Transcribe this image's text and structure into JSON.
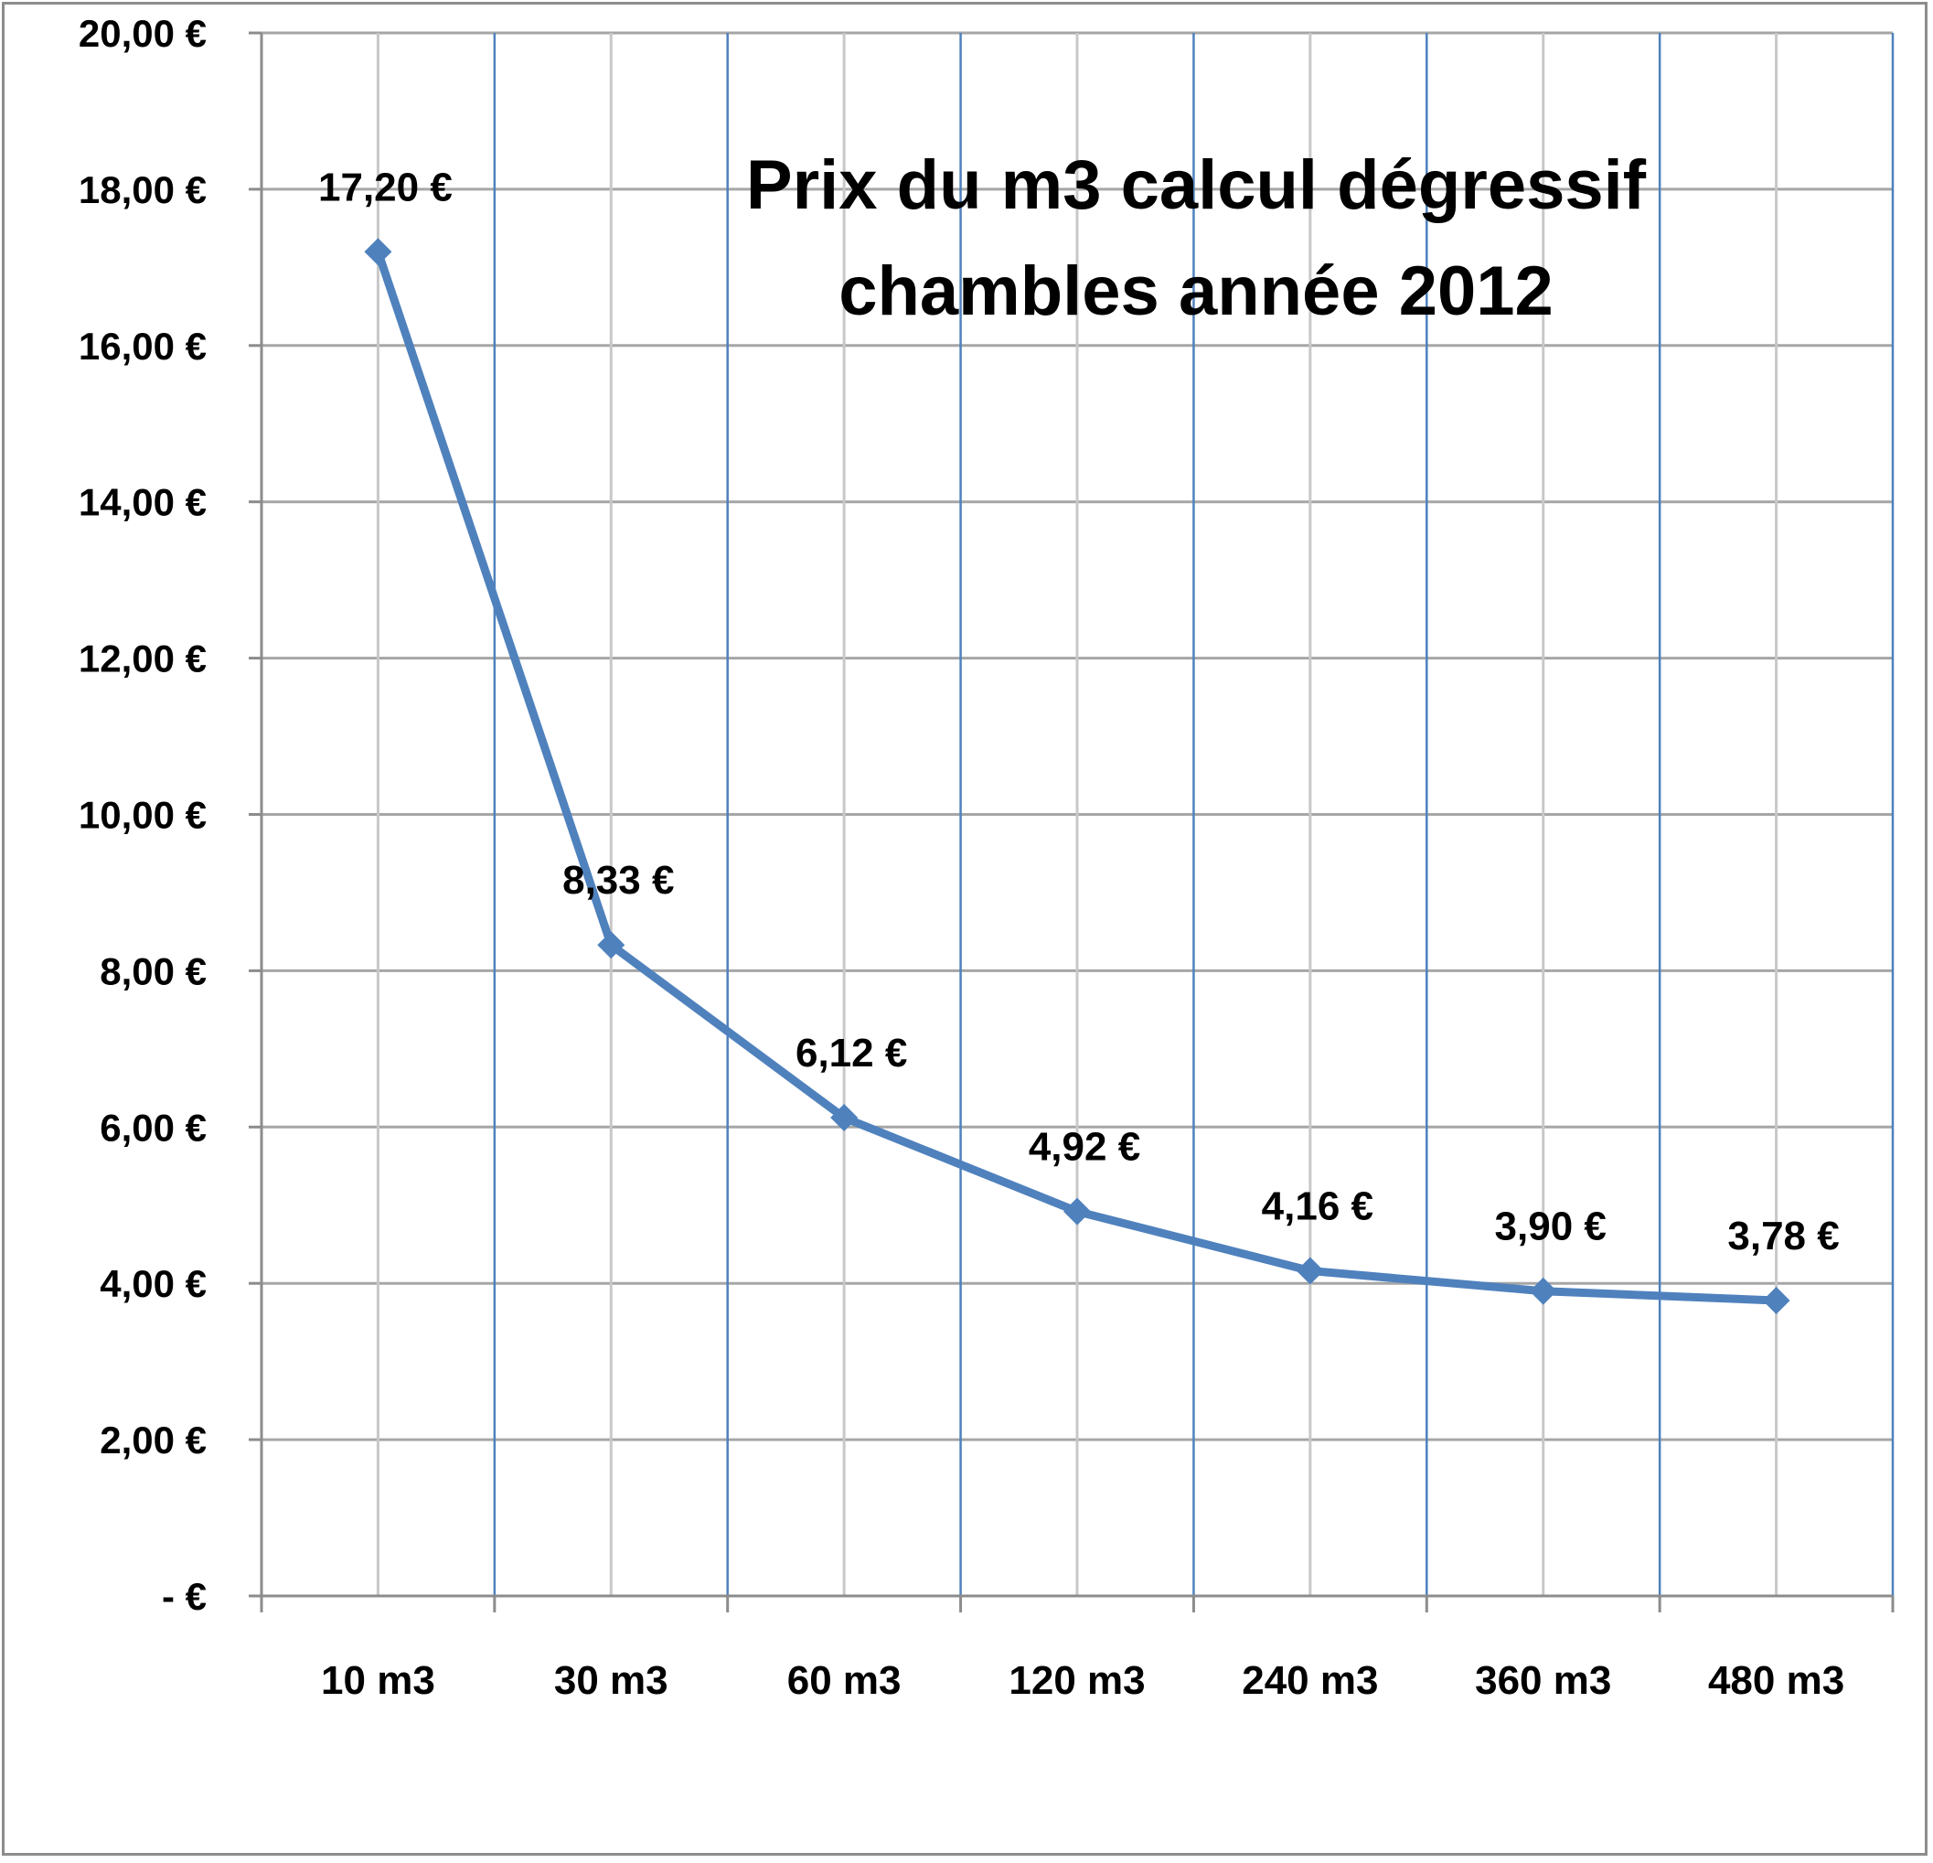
{
  "chart_data": {
    "type": "line",
    "title_lines": [
      "Prix du m3  calcul dégressif",
      "chambles année  2012"
    ],
    "categories": [
      "10 m3",
      "30 m3",
      "60 m3",
      "120 m3",
      "240 m3",
      "360 m3",
      "480 m3"
    ],
    "series": [
      {
        "values": [
          17.2,
          8.33,
          6.12,
          4.92,
          4.16,
          3.9,
          3.78
        ],
        "labels": [
          "17,20 €",
          "8,33 €",
          "6,12 €",
          "4,92 €",
          "4,16 €",
          "3,90 €",
          "3,78 €"
        ],
        "color": "#4f81bd",
        "marker": "diamond"
      }
    ],
    "ylim": [
      0,
      20
    ],
    "yticks": [
      0,
      2,
      4,
      6,
      8,
      10,
      12,
      14,
      16,
      18,
      20
    ],
    "ytick_labels": [
      "-   €",
      "2,00 €",
      "4,00 €",
      "6,00 €",
      "8,00 €",
      "10,00 €",
      "12,00 €",
      "14,00 €",
      "16,00 €",
      "18,00 €",
      "20,00 €"
    ],
    "grid": true,
    "colors": {
      "line": "#4f81bd",
      "grid_major": "#a6a6a6",
      "grid_category_boundary": "#4f81bd",
      "grid_category_center": "#c8c8c8",
      "frame": "#8c8c8c"
    }
  }
}
